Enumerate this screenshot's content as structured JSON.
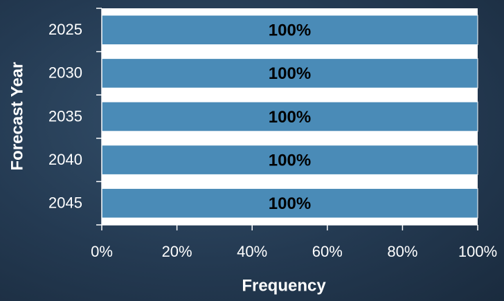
{
  "chart_data": {
    "type": "bar",
    "orientation": "horizontal",
    "categories": [
      "2025",
      "2030",
      "2035",
      "2040",
      "2045"
    ],
    "values": [
      100,
      100,
      100,
      100,
      100
    ],
    "value_labels": [
      "100%",
      "100%",
      "100%",
      "100%",
      "100%"
    ],
    "color": "#4a8bb7",
    "xlim": [
      0,
      100
    ],
    "xticks": [
      {
        "value": 0,
        "label": "0%"
      },
      {
        "value": 20,
        "label": "20%"
      },
      {
        "value": 40,
        "label": "40%"
      },
      {
        "value": 60,
        "label": "60%"
      },
      {
        "value": 80,
        "label": "80%"
      },
      {
        "value": 100,
        "label": "100%"
      }
    ],
    "x_label": "Frequency",
    "y_label": "Forecast Year"
  }
}
